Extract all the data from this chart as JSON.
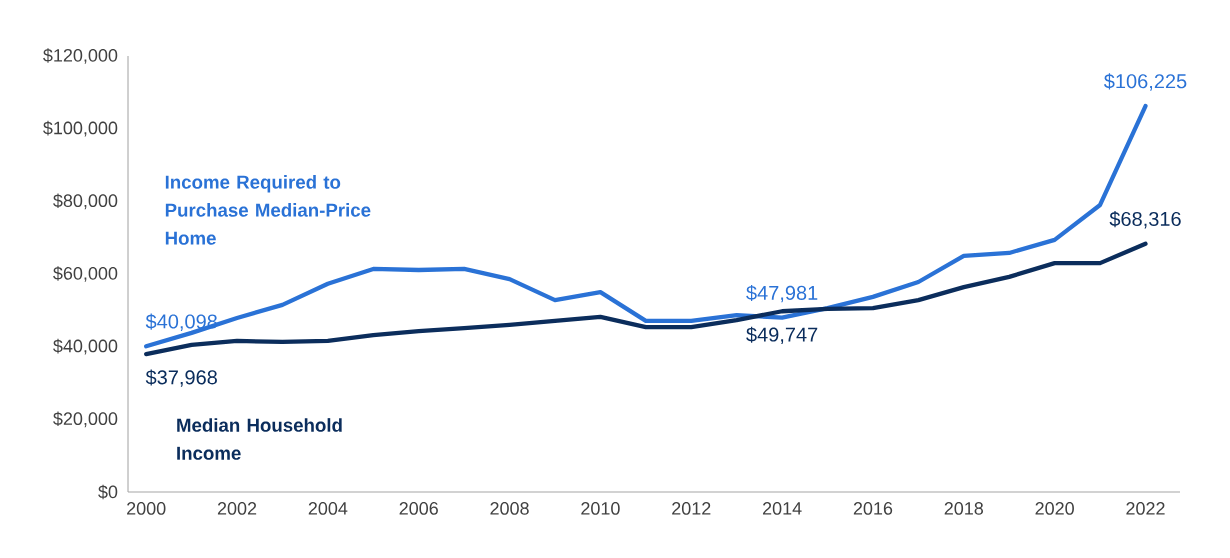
{
  "chart_data": {
    "type": "line",
    "x": [
      2000,
      2001,
      2002,
      2003,
      2004,
      2005,
      2006,
      2007,
      2008,
      2009,
      2010,
      2011,
      2012,
      2013,
      2014,
      2015,
      2016,
      2017,
      2018,
      2019,
      2020,
      2021,
      2022
    ],
    "series": [
      {
        "name": "Income Required to Purchase Median-Price Home",
        "color": "#2a72d6",
        "values": [
          40098,
          43800,
          47900,
          51500,
          57300,
          61400,
          61100,
          61400,
          58600,
          52800,
          55000,
          47100,
          47100,
          48700,
          47981,
          50600,
          53700,
          57800,
          65000,
          65800,
          69400,
          79000,
          106225
        ],
        "value_labels": [
          "$40,098",
          null,
          null,
          null,
          null,
          null,
          null,
          null,
          null,
          null,
          null,
          null,
          null,
          null,
          "$47,981",
          null,
          null,
          null,
          null,
          null,
          null,
          null,
          "$106,225"
        ]
      },
      {
        "name": "Median Household Income",
        "color": "#0b2d5c",
        "values": [
          37968,
          40500,
          41600,
          41300,
          41600,
          43200,
          44300,
          45100,
          46000,
          47100,
          48200,
          45400,
          45400,
          47300,
          49747,
          50400,
          50600,
          52800,
          56400,
          59200,
          63000,
          63000,
          68316
        ],
        "value_labels": [
          "$37,968",
          null,
          null,
          null,
          null,
          null,
          null,
          null,
          null,
          null,
          null,
          null,
          null,
          null,
          "$49,747",
          null,
          null,
          null,
          null,
          null,
          null,
          null,
          "$68,316"
        ]
      }
    ],
    "xlim": [
      1999.6,
      2022.76
    ],
    "ylim": [
      0,
      120000
    ],
    "xticks": [
      2000,
      2002,
      2004,
      2006,
      2008,
      2010,
      2012,
      2014,
      2016,
      2018,
      2020,
      2022
    ],
    "yticks": [
      {
        "value": 0,
        "label": "$0"
      },
      {
        "value": 20000,
        "label": "$20,000"
      },
      {
        "value": 40000,
        "label": "$40,000"
      },
      {
        "value": 60000,
        "label": "$60,000"
      },
      {
        "value": 80000,
        "label": "$80,000"
      },
      {
        "value": 100000,
        "label": "$100,000"
      },
      {
        "value": 120000,
        "label": "$120,000"
      }
    ],
    "grid": false,
    "legend": false,
    "marker": "none",
    "line_style": "solid"
  }
}
